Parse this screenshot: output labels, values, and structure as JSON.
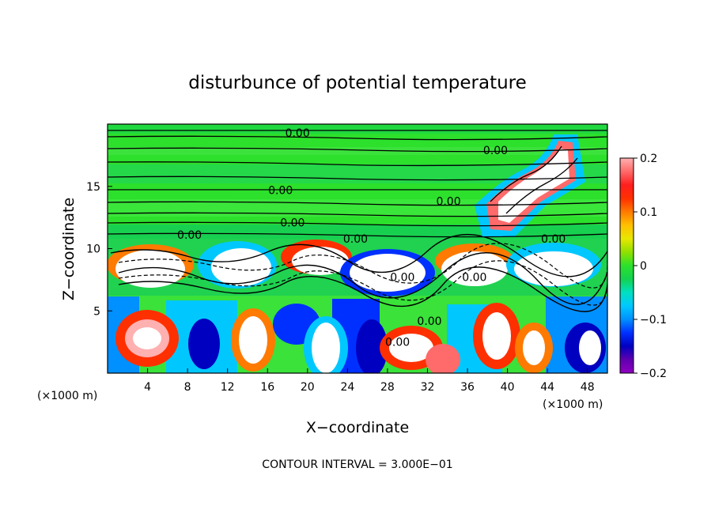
{
  "chart_data": {
    "type": "heatmap",
    "title": "disturbunce of potential temperature",
    "xlabel": "X−coordinate",
    "ylabel": "Z−coordinate",
    "x_unit": "(×1000 m)",
    "y_unit": "(×1000 m)",
    "footer": "CONTOUR INTERVAL = 3.000E−01",
    "xlim": [
      0,
      50
    ],
    "ylim": [
      0,
      20
    ],
    "x_ticks": [
      4,
      8,
      12,
      16,
      20,
      24,
      28,
      32,
      36,
      40,
      44,
      48
    ],
    "y_ticks": [
      5,
      10,
      15
    ],
    "colorbar": {
      "min": -0.2,
      "max": 0.2,
      "tick_values": [
        0.2,
        0.1,
        0,
        -0.1,
        -0.2
      ],
      "tick_labels": [
        "0.2",
        "0.1",
        "0",
        "−0.1",
        "−0.2"
      ],
      "colors": [
        "#ffb0b0",
        "#ff6a6a",
        "#ff1e1e",
        "#ff3000",
        "#ff7a00",
        "#ffc000",
        "#e8e800",
        "#90e000",
        "#2ce02c",
        "#14d250",
        "#00e0c0",
        "#00c8ff",
        "#0090ff",
        "#0030ff",
        "#0000c0",
        "#6000b0",
        "#9000c0"
      ]
    },
    "contour_labels": [
      {
        "text": "0.00",
        "x": 19.0,
        "z": 19.3
      },
      {
        "text": "0.00",
        "x": 17.3,
        "z": 14.7
      },
      {
        "text": "0.00",
        "x": 18.5,
        "z": 12.1
      },
      {
        "text": "0.00",
        "x": 8.2,
        "z": 11.1
      },
      {
        "text": "0.00",
        "x": 24.8,
        "z": 10.8
      },
      {
        "text": "0.00",
        "x": 38.8,
        "z": 17.9
      },
      {
        "text": "0.00",
        "x": 34.1,
        "z": 13.8
      },
      {
        "text": "0.00",
        "x": 44.6,
        "z": 10.8
      },
      {
        "text": "0.00",
        "x": 29.5,
        "z": 7.7
      },
      {
        "text": "0.00",
        "x": 36.7,
        "z": 7.7
      },
      {
        "text": "0.00",
        "x": 29.0,
        "z": 2.5
      },
      {
        "text": "0.00",
        "x": 32.2,
        "z": 4.2
      }
    ]
  }
}
